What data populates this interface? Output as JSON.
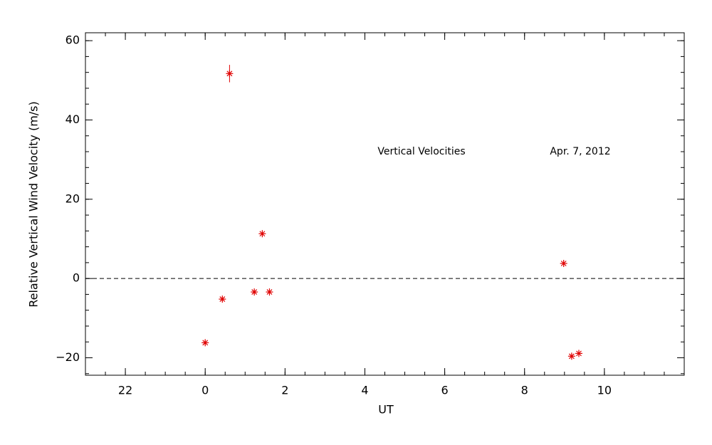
{
  "chart_data": {
    "type": "scatter",
    "xlabel": "UT",
    "ylabel": "Relative Vertical Wind Velocity (m/s)",
    "annotations": [
      "Vertical Velocities",
      "Apr. 7, 2012"
    ],
    "x": [
      0,
      0.43,
      0.61,
      1.23,
      1.43,
      1.61,
      8.98,
      9.18,
      9.36
    ],
    "values": [
      -16.2,
      -5.2,
      51.7,
      -3.4,
      11.3,
      -3.4,
      3.8,
      -19.6,
      -18.9
    ],
    "errors": [
      0.5,
      0.5,
      2.2,
      0.5,
      0.5,
      0.5,
      0.5,
      0.5,
      0.5
    ],
    "color": "#e00000",
    "xlim": [
      -3,
      12
    ],
    "ylim": [
      -24.4,
      62
    ],
    "xticks": [
      {
        "value": -2,
        "label": "22"
      },
      0,
      2,
      4,
      6,
      8,
      10
    ],
    "yticks": [
      {
        "value": -20,
        "label": "−20"
      },
      0,
      20,
      40,
      60
    ],
    "x_minor_step": 0.5,
    "y_minor_step": 4,
    "reference_line": 0
  }
}
